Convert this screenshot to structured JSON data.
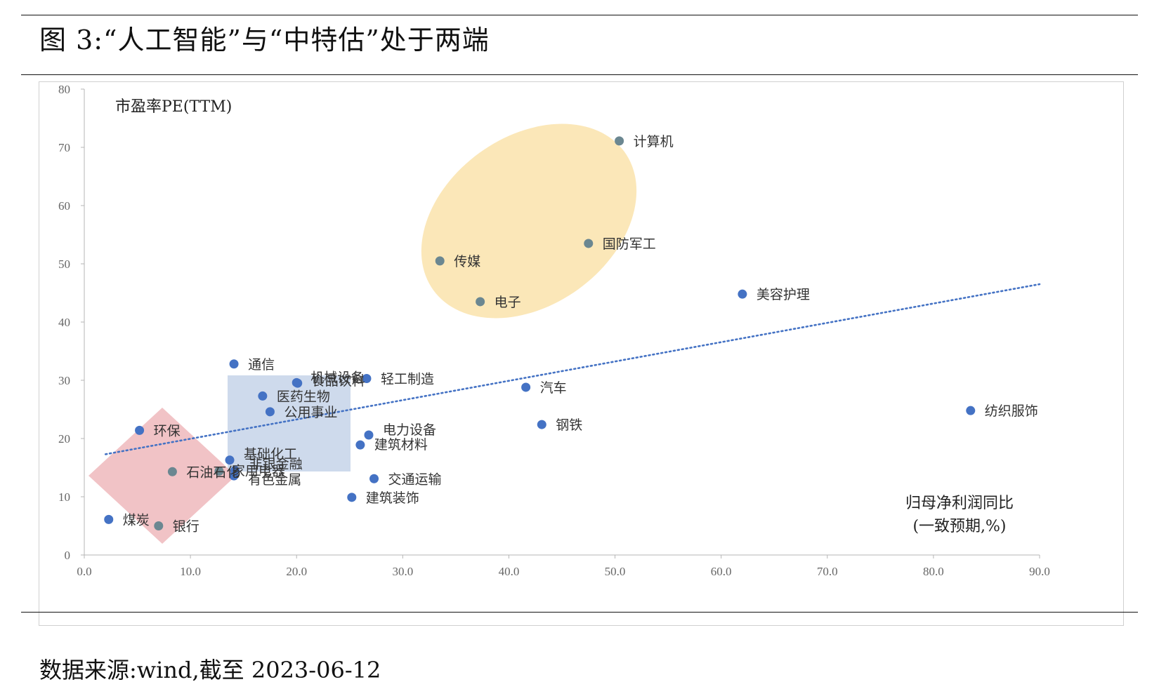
{
  "title": "图 3:“人工智能”与“中特估”处于两端",
  "source": "数据来源:wind,截至 2023-06-12",
  "chart_data": {
    "type": "scatter",
    "ylabel": "市盈率PE(TTM)",
    "xlabel_line1": "归母净利润同比",
    "xlabel_line2": "(一致预期,%)",
    "xlim": [
      0,
      90
    ],
    "ylim": [
      0,
      80
    ],
    "x_ticks": [
      "0.0",
      "10.0",
      "20.0",
      "30.0",
      "40.0",
      "50.0",
      "60.0",
      "70.0",
      "80.0",
      "90.0"
    ],
    "y_ticks": [
      "0",
      "10",
      "20",
      "30",
      "40",
      "50",
      "60",
      "70",
      "80"
    ],
    "grid": false,
    "trendline": {
      "style": "dotted",
      "x1": 2.0,
      "y1": 17.3,
      "x2": 90.0,
      "y2": 46.5
    },
    "colors": {
      "point": "#4472c4",
      "point_in_group": "#6b8791",
      "trendline": "#4472c4",
      "ellipse": "#fbe4b0",
      "rect": "#c9d6ea",
      "diamond": "#eeb9bc"
    },
    "points": [
      {
        "name": "计算机",
        "x": 50.4,
        "y": 71.1
      },
      {
        "name": "国防军工",
        "x": 47.5,
        "y": 53.5
      },
      {
        "name": "传媒",
        "x": 33.5,
        "y": 50.5
      },
      {
        "name": "电子",
        "x": 37.3,
        "y": 43.5
      },
      {
        "name": "美容护理",
        "x": 62.0,
        "y": 44.8
      },
      {
        "name": "通信",
        "x": 14.1,
        "y": 32.8
      },
      {
        "name": "轻工制造",
        "x": 26.6,
        "y": 30.3
      },
      {
        "name": "机械设备",
        "x": 20.0,
        "y": 29.6
      },
      {
        "name": "食品饮料",
        "x": 20.1,
        "y": 29.5
      },
      {
        "name": "汽车",
        "x": 41.6,
        "y": 28.8
      },
      {
        "name": "医药生物",
        "x": 16.8,
        "y": 27.3
      },
      {
        "name": "公用事业",
        "x": 17.5,
        "y": 24.6
      },
      {
        "name": "纺织服饰",
        "x": 83.5,
        "y": 24.8
      },
      {
        "name": "钢铁",
        "x": 43.1,
        "y": 22.4
      },
      {
        "name": "环保",
        "x": 5.2,
        "y": 21.4
      },
      {
        "name": "电力设备",
        "x": 26.8,
        "y": 20.6
      },
      {
        "name": "建筑材料",
        "x": 26.0,
        "y": 18.9
      },
      {
        "name": "基础化工",
        "x": 13.7,
        "y": 16.3
      },
      {
        "name": "石油石化",
        "x": 8.3,
        "y": 14.3
      },
      {
        "name": "家用电器",
        "x": 12.7,
        "y": 14.4
      },
      {
        "name": "非银金融",
        "x": 14.2,
        "y": 14.5
      },
      {
        "name": "有色金属",
        "x": 14.1,
        "y": 13.6
      },
      {
        "name": "交通运输",
        "x": 27.3,
        "y": 13.1
      },
      {
        "name": "建筑装饰",
        "x": 25.2,
        "y": 9.9
      },
      {
        "name": "煤炭",
        "x": 2.3,
        "y": 6.1
      },
      {
        "name": "银行",
        "x": 7.0,
        "y": 5.0
      }
    ]
  }
}
